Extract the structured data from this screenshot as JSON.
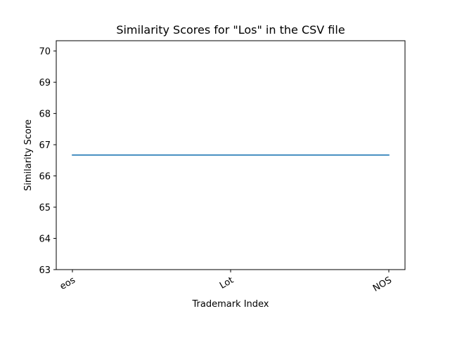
{
  "chart_data": {
    "type": "line",
    "title": "Similarity Scores for \"Los\" in the CSV file",
    "xlabel": "Trademark Index",
    "ylabel": "Similarity Score",
    "categories": [
      "eos",
      "Lot",
      "NOS"
    ],
    "series": [
      {
        "values": [
          66.67,
          66.67,
          66.67
        ],
        "color": "#1f77b4"
      }
    ],
    "ylim": [
      63,
      70.33
    ],
    "yticks": [
      63,
      64,
      65,
      66,
      67,
      68,
      69,
      70
    ],
    "grid": false,
    "legend": "none"
  }
}
